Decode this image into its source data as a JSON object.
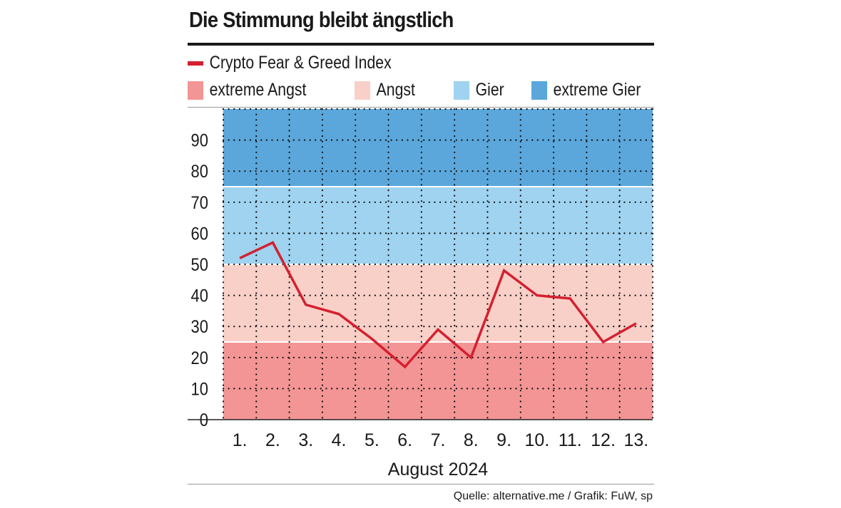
{
  "chart_data": {
    "type": "line",
    "title": "Die Stimmung bleibt ängstlich",
    "xlabel": "August 2024",
    "ylabel": "",
    "categories": [
      "1.",
      "2.",
      "3.",
      "4.",
      "5.",
      "6.",
      "7.",
      "8.",
      "9.",
      "10.",
      "11.",
      "12.",
      "13."
    ],
    "series": [
      {
        "name": "Crypto Fear & Greed Index",
        "values": [
          52,
          57,
          37,
          34,
          26,
          17,
          29,
          20,
          48,
          40,
          39,
          25,
          31
        ],
        "color": "#d42030"
      }
    ],
    "ylim": [
      0,
      100
    ],
    "yticks": [
      0,
      10,
      20,
      30,
      40,
      50,
      60,
      70,
      80,
      90
    ],
    "grid": true,
    "bands": [
      {
        "name": "extreme Angst",
        "from": 0,
        "to": 25,
        "color": "#f39595"
      },
      {
        "name": "Angst",
        "from": 25,
        "to": 50,
        "color": "#f8d0c8"
      },
      {
        "name": "Gier",
        "from": 50,
        "to": 75,
        "color": "#9fd3f0"
      },
      {
        "name": "extreme Gier",
        "from": 75,
        "to": 100,
        "color": "#5ba7db"
      }
    ],
    "legend": "top"
  },
  "source": "Quelle: alternative.me / Grafik: FuW, sp"
}
